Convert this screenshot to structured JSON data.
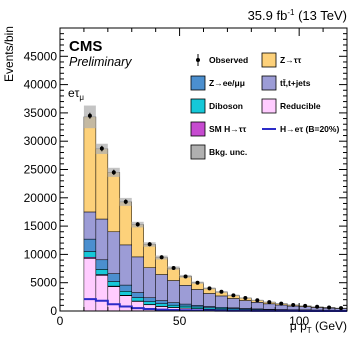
{
  "colors": {
    "ztt": "#fdd17a",
    "tt": "#9c9cd6",
    "zll": "#4b8fcf",
    "diboson": "#15c8d8",
    "reducible": "#ffccff",
    "smh": "#c64bd0",
    "signal": "#2b2bc8",
    "unc": "#b0b0b0"
  },
  "chart_data": {
    "type": "histogram",
    "header_lumi": "35.9 fb",
    "header_lumi_sup": "-1",
    "header_energy": "(13 TeV)",
    "experiment": "CMS",
    "status": "Preliminary",
    "channel": "eτ",
    "channel_sub": "μ",
    "ylabel": "Events/bin",
    "xlabel": "μ p",
    "xlabel_sub": "T",
    "xlabel_unit": "(GeV)",
    "xlim": [
      0,
      120
    ],
    "ylim": [
      0,
      50000
    ],
    "x_ticks": [
      0,
      50,
      100
    ],
    "y_ticks": [
      0,
      5000,
      10000,
      15000,
      20000,
      25000,
      30000,
      35000,
      40000,
      45000
    ],
    "legend": [
      {
        "key": "observed",
        "label": "Observed",
        "style": "marker"
      },
      {
        "key": "ztt",
        "label": "Z→ττ",
        "style": "box"
      },
      {
        "key": "zll",
        "label": "Z→ee/μμ",
        "style": "box"
      },
      {
        "key": "tt",
        "label": "tt̄,t+jets",
        "style": "box"
      },
      {
        "key": "diboson",
        "label": "Diboson",
        "style": "box"
      },
      {
        "key": "reducible",
        "label": "Reducible",
        "style": "box"
      },
      {
        "key": "smh",
        "label": "SM H→ττ",
        "style": "box"
      },
      {
        "key": "signal",
        "label": "H→eτ (B=20%)",
        "style": "line"
      },
      {
        "key": "unc",
        "label": "Bkg. unc.",
        "style": "box"
      }
    ],
    "bin_edges": [
      10,
      15,
      20,
      25,
      30,
      35,
      40,
      45,
      50,
      55,
      60,
      65,
      70,
      75,
      80,
      85,
      90,
      95,
      100,
      105,
      110,
      115,
      120
    ],
    "stack_order": [
      "reducible",
      "smh",
      "diboson",
      "zll",
      "tt",
      "ztt"
    ],
    "stack": {
      "reducible": [
        9300,
        6300,
        4300,
        2700,
        1700,
        1100,
        800,
        600,
        500,
        400,
        300,
        250,
        200,
        150,
        120,
        100,
        80,
        70,
        60,
        50,
        40,
        30
      ],
      "smh": [
        200,
        150,
        100,
        80,
        60,
        50,
        40,
        30,
        25,
        20,
        15,
        12,
        10,
        8,
        6,
        5,
        4,
        3,
        3,
        2,
        2,
        2
      ],
      "diboson": [
        1000,
        900,
        800,
        700,
        600,
        500,
        450,
        400,
        350,
        300,
        250,
        220,
        200,
        170,
        150,
        130,
        110,
        100,
        90,
        80,
        70,
        60
      ],
      "zll": [
        2200,
        1700,
        1400,
        1100,
        900,
        700,
        550,
        450,
        350,
        280,
        230,
        180,
        150,
        120,
        100,
        80,
        70,
        60,
        50,
        40,
        35,
        30
      ],
      "tt": [
        4800,
        7200,
        7400,
        7100,
        6300,
        5300,
        4600,
        3900,
        3300,
        2800,
        2300,
        2000,
        1650,
        1400,
        1150,
        950,
        800,
        650,
        550,
        450,
        380,
        300
      ],
      "ztt": [
        16800,
        12400,
        10500,
        7600,
        5700,
        4100,
        3000,
        2200,
        1600,
        1200,
        900,
        700,
        550,
        450,
        370,
        300,
        240,
        190,
        150,
        120,
        100,
        80
      ]
    },
    "unc_half_width": [
      2000,
      900,
      800,
      700,
      500,
      400,
      350,
      300,
      250,
      200,
      170,
      150,
      130,
      110,
      100,
      90,
      80,
      70,
      60,
      50,
      45,
      40
    ],
    "observed": {
      "x": [
        12.5,
        17.5,
        22.5,
        27.5,
        32.5,
        37.5,
        42.5,
        47.5,
        52.5,
        57.5,
        62.5,
        67.5,
        72.5,
        77.5,
        82.5,
        87.5,
        92.5,
        97.5,
        102.5,
        107.5,
        112.5,
        117.5
      ],
      "y": [
        34500,
        28700,
        24500,
        19300,
        15300,
        11800,
        9500,
        7600,
        6100,
        5000,
        4000,
        3400,
        2760,
        2300,
        1900,
        1570,
        1300,
        1070,
        900,
        740,
        620,
        500
      ]
    },
    "signal": [
      2100,
      1800,
      1200,
      800,
      500,
      350,
      250,
      180,
      130,
      100,
      80,
      60,
      45,
      35,
      28,
      22,
      18,
      14,
      11,
      9,
      7,
      5
    ]
  }
}
